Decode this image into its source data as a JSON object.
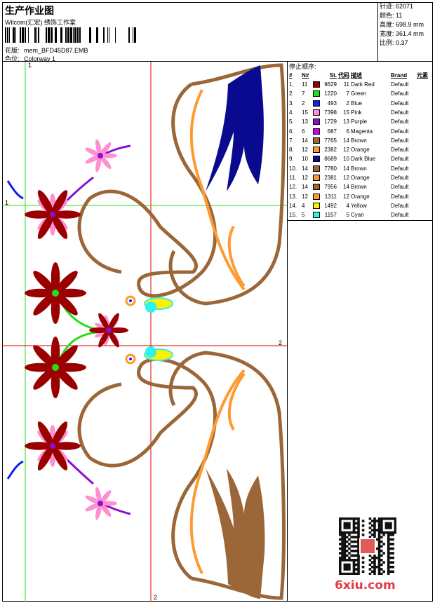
{
  "header": {
    "title": "生产作业图",
    "company": "Wilcom(汇宏) 绣饰工作室",
    "design_label": "花版:",
    "design_value": "mem_BFD45D87.EMB",
    "colorway_label": "色位:",
    "colorway_value": "Colorway 1"
  },
  "stats": [
    {
      "label": "针迹:",
      "value": "62071"
    },
    {
      "label": "颜色:",
      "value": "11"
    },
    {
      "label": "高度:",
      "value": "698.9 mm"
    },
    {
      "label": "宽度:",
      "value": "361.4 mm"
    },
    {
      "label": "比例:",
      "value": "0.37"
    }
  ],
  "stop_sequence": {
    "title": "停止顺序:",
    "headers": {
      "seq": "#",
      "needle": "N#",
      "st": "St.",
      "code": "代码",
      "desc": "描述",
      "brand": "Brand",
      "elem": "元素"
    },
    "rows": [
      {
        "seq": "1.",
        "needle": "11",
        "color": "#9b0000",
        "st": "9629",
        "code": "11",
        "desc": "Dark Red",
        "brand": "Default"
      },
      {
        "seq": "2.",
        "needle": "7",
        "color": "#22e014",
        "st": "1220",
        "code": "7",
        "desc": "Green",
        "brand": "Default"
      },
      {
        "seq": "3.",
        "needle": "2",
        "color": "#1020f0",
        "st": "493",
        "code": "2",
        "desc": "Blue",
        "brand": "Default"
      },
      {
        "seq": "4.",
        "needle": "15",
        "color": "#ff8fd0",
        "st": "7398",
        "code": "15",
        "desc": "Pink",
        "brand": "Default"
      },
      {
        "seq": "5.",
        "needle": "13",
        "color": "#8a10d0",
        "st": "1729",
        "code": "13",
        "desc": "Purple",
        "brand": "Default"
      },
      {
        "seq": "6.",
        "needle": "6",
        "color": "#d000e8",
        "st": "687",
        "code": "6",
        "desc": "Magenta",
        "brand": "Default"
      },
      {
        "seq": "7.",
        "needle": "14",
        "color": "#9b6638",
        "st": "7765",
        "code": "14",
        "desc": "Brown",
        "brand": "Default"
      },
      {
        "seq": "8.",
        "needle": "12",
        "color": "#ff9a30",
        "st": "2382",
        "code": "12",
        "desc": "Orange",
        "brand": "Default"
      },
      {
        "seq": "9.",
        "needle": "10",
        "color": "#0a0a90",
        "st": "8689",
        "code": "10",
        "desc": "Dark Blue",
        "brand": "Default"
      },
      {
        "seq": "10.",
        "needle": "14",
        "color": "#9b6638",
        "st": "7780",
        "code": "14",
        "desc": "Brown",
        "brand": "Default"
      },
      {
        "seq": "11.",
        "needle": "12",
        "color": "#ff9a30",
        "st": "2381",
        "code": "12",
        "desc": "Orange",
        "brand": "Default"
      },
      {
        "seq": "12.",
        "needle": "14",
        "color": "#9b6638",
        "st": "7956",
        "code": "14",
        "desc": "Brown",
        "brand": "Default"
      },
      {
        "seq": "13.",
        "needle": "12",
        "color": "#ff9a30",
        "st": "1311",
        "code": "12",
        "desc": "Orange",
        "brand": "Default"
      },
      {
        "seq": "14.",
        "needle": "4",
        "color": "#fff000",
        "st": "1492",
        "code": "4",
        "desc": "Yellow",
        "brand": "Default"
      },
      {
        "seq": "15.",
        "needle": "5",
        "color": "#30f0f0",
        "st": "1157",
        "code": "5",
        "desc": "Cyan",
        "brand": "Default"
      }
    ]
  },
  "markers": {
    "v1": "1",
    "h1": "1",
    "h2": "2",
    "v2": "2"
  },
  "watermark": "6xiu.com"
}
